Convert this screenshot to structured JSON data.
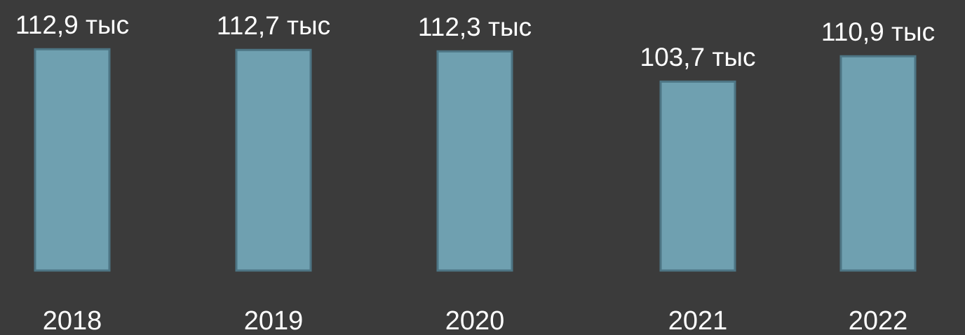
{
  "chart_data": {
    "type": "bar",
    "categories": [
      "2018",
      "2019",
      "2020",
      "2021",
      "2022"
    ],
    "values": [
      112.9,
      112.7,
      112.3,
      103.7,
      110.9
    ],
    "value_labels": [
      "112,9 тыс",
      "112,7 тыс",
      "112,3 тыс",
      "103,7 тыс",
      "110,9 тыс"
    ],
    "color": "#6fa0b0",
    "ylim": [
      50,
      120
    ]
  }
}
